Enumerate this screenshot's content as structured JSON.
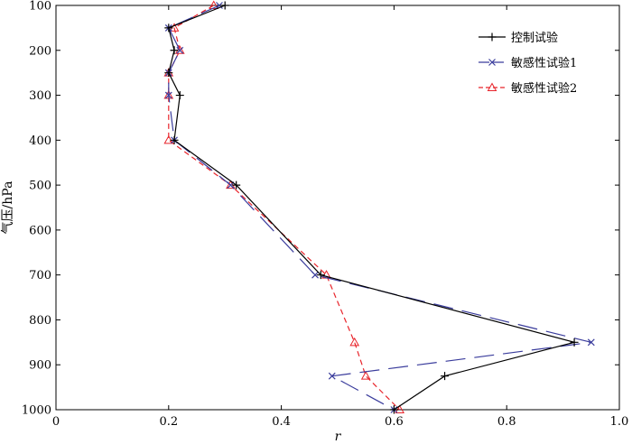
{
  "chart_data": {
    "type": "line",
    "title": "",
    "xlabel": "r",
    "ylabel": "气压/hPa",
    "xlim": [
      0,
      1.0
    ],
    "ylim": [
      100,
      1000
    ],
    "y_inverted": true,
    "xticks": [
      "0",
      "0.2",
      "0.4",
      "0.6",
      "0.8",
      "1.0"
    ],
    "yticks": [
      "100",
      "200",
      "300",
      "400",
      "500",
      "600",
      "700",
      "800",
      "900",
      "1000"
    ],
    "grid": false,
    "legend_position": "top-right",
    "series": [
      {
        "name": "控制试验",
        "color": "#000000",
        "marker": "plus",
        "line_style": "solid",
        "points": [
          {
            "x": 0.3,
            "y": 100
          },
          {
            "x": 0.2,
            "y": 150
          },
          {
            "x": 0.21,
            "y": 200
          },
          {
            "x": 0.2,
            "y": 250
          },
          {
            "x": 0.22,
            "y": 300
          },
          {
            "x": 0.21,
            "y": 400
          },
          {
            "x": 0.32,
            "y": 500
          },
          {
            "x": 0.47,
            "y": 700
          },
          {
            "x": 0.92,
            "y": 850
          },
          {
            "x": 0.69,
            "y": 925
          },
          {
            "x": 0.6,
            "y": 1000
          }
        ]
      },
      {
        "name": "敏感性试验1",
        "color": "#3a3c9c",
        "marker": "x",
        "line_style": "longdash",
        "points": [
          {
            "x": 0.29,
            "y": 100
          },
          {
            "x": 0.2,
            "y": 150
          },
          {
            "x": 0.22,
            "y": 200
          },
          {
            "x": 0.2,
            "y": 250
          },
          {
            "x": 0.2,
            "y": 300
          },
          {
            "x": 0.21,
            "y": 400
          },
          {
            "x": 0.31,
            "y": 500
          },
          {
            "x": 0.46,
            "y": 700
          },
          {
            "x": 0.95,
            "y": 850
          },
          {
            "x": 0.49,
            "y": 925
          },
          {
            "x": 0.6,
            "y": 1000
          }
        ]
      },
      {
        "name": "敏感性试验2",
        "color": "#e8242b",
        "marker": "triangle",
        "line_style": "dashed",
        "points": [
          {
            "x": 0.28,
            "y": 100
          },
          {
            "x": 0.21,
            "y": 150
          },
          {
            "x": 0.22,
            "y": 200
          },
          {
            "x": 0.2,
            "y": 250
          },
          {
            "x": 0.2,
            "y": 300
          },
          {
            "x": 0.2,
            "y": 400
          },
          {
            "x": 0.31,
            "y": 500
          },
          {
            "x": 0.48,
            "y": 700
          },
          {
            "x": 0.53,
            "y": 850
          },
          {
            "x": 0.55,
            "y": 925
          },
          {
            "x": 0.61,
            "y": 1000
          }
        ]
      }
    ]
  }
}
